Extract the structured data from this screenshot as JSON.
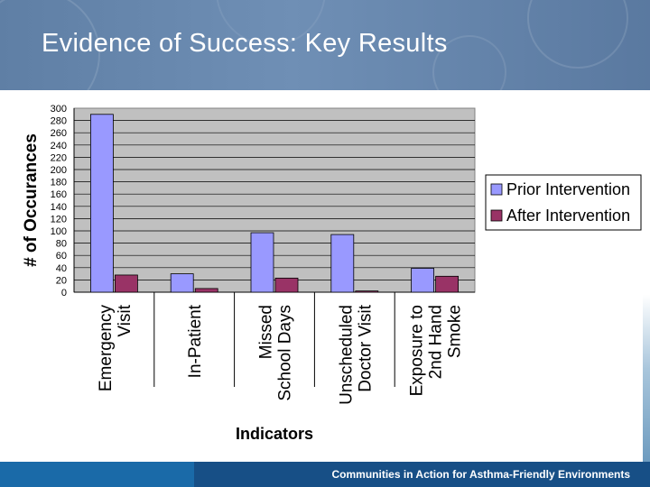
{
  "slide": {
    "title": "Evidence of Success:  Key Results",
    "footer": "Communities in Action for Asthma-Friendly Environments"
  },
  "colors": {
    "header_bg": "#6a8ab0",
    "plot_bg": "#c0c0c0",
    "prior_bar": "#9999ff",
    "after_bar": "#993366",
    "footer_bg": "#174f86"
  },
  "chart_data": {
    "type": "bar",
    "categories": [
      [
        "Emergency",
        "Visit"
      ],
      [
        "In-Patient"
      ],
      [
        "Missed",
        "School Days"
      ],
      [
        "Unscheduled",
        "Doctor Visit"
      ],
      [
        "Exposure to",
        "2nd Hand",
        "Smoke"
      ]
    ],
    "series": [
      {
        "name": "Prior Intervention",
        "color": "#9999ff",
        "values": [
          290,
          30,
          97,
          94,
          39
        ]
      },
      {
        "name": "After Intervention",
        "color": "#993366",
        "values": [
          28,
          6,
          23,
          2,
          26
        ]
      }
    ],
    "xlabel": "Indicators",
    "ylabel": "# of Occurances",
    "ylim": [
      0,
      300
    ],
    "ytick_step": 20,
    "grid": true,
    "legend_position": "right"
  }
}
